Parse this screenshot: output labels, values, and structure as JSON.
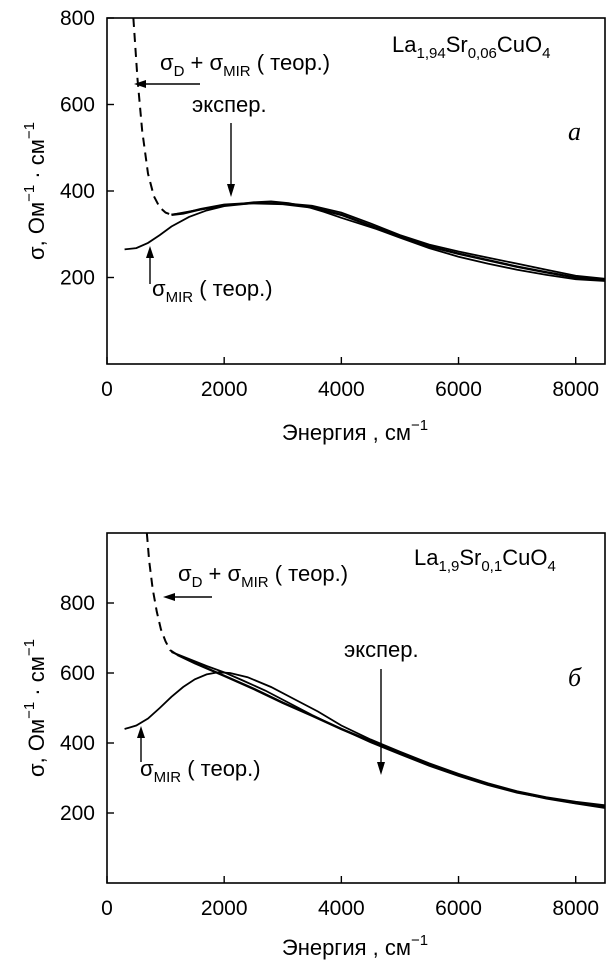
{
  "chart_data": [
    {
      "type": "line",
      "panel_letter": "a",
      "compound": {
        "main_1": "La",
        "sub_1": "1,94",
        "main_2": "Sr",
        "sub_2": "0,06",
        "main_3": "CuO",
        "sub_3": "4"
      },
      "xlim": [
        0,
        8500
      ],
      "ylim": [
        0,
        800
      ],
      "x_ticks": [
        0,
        2000,
        4000,
        6000,
        8000
      ],
      "y_ticks": [
        200,
        400,
        600,
        800
      ],
      "xlabel": {
        "text": "Энергия , см",
        "sup": "−1"
      },
      "ylabel": {
        "text_1": "σ, Ом",
        "sup_1": "−1",
        "text_2": " · см",
        "sup_2": "−1"
      },
      "annotations": {
        "total": {
          "sigma_1": "σ",
          "sub_1": "D",
          "plus": " + ",
          "sigma_2": "σ",
          "sub_2": "MIR",
          "tail": " ( теор.)"
        },
        "mir": {
          "sigma": "σ",
          "sub": "MIR",
          "tail": " ( теор.)"
        },
        "exp": "экспер."
      },
      "series": [
        {
          "style": "dashed-then-solid",
          "x": [
            450,
            520,
            600,
            700,
            800,
            900,
            1000,
            1100,
            1300,
            1600,
            2000,
            2500,
            3000,
            3500,
            4000,
            4500,
            5000,
            5500,
            6000,
            6500,
            7000,
            7500,
            8000,
            8500
          ],
          "y": [
            800,
            660,
            540,
            440,
            388,
            362,
            350,
            345,
            348,
            358,
            368,
            372,
            370,
            362,
            345,
            320,
            295,
            272,
            255,
            240,
            225,
            212,
            200,
            195
          ]
        },
        {
          "style": "solid",
          "x": [
            300,
            500,
            700,
            900,
            1100,
            1400,
            1700,
            2000,
            2500,
            3000,
            3500,
            4000,
            4500,
            5000,
            5500,
            6000,
            6500,
            7000,
            7500,
            8000,
            8500
          ],
          "y": [
            265,
            268,
            280,
            298,
            318,
            340,
            355,
            365,
            372,
            372,
            366,
            350,
            325,
            298,
            276,
            260,
            246,
            232,
            218,
            204,
            197
          ]
        },
        {
          "style": "solid",
          "x": [
            1100,
            1500,
            2000,
            2500,
            2800,
            3100,
            3400,
            3700,
            4000,
            4300,
            4600,
            5000,
            5500,
            6000,
            6500,
            7000,
            7500,
            8000,
            8500
          ],
          "y": [
            345,
            355,
            366,
            374,
            376,
            372,
            364,
            352,
            338,
            325,
            312,
            292,
            268,
            248,
            232,
            218,
            206,
            196,
            192
          ]
        }
      ]
    },
    {
      "type": "line",
      "panel_letter": "б",
      "compound": {
        "main_1": "La",
        "sub_1": "1,9",
        "main_2": "Sr",
        "sub_2": "0,1",
        "main_3": "CuO",
        "sub_3": "4"
      },
      "xlim": [
        0,
        8500
      ],
      "ylim": [
        0,
        1000
      ],
      "x_ticks": [
        0,
        2000,
        4000,
        6000,
        8000
      ],
      "y_ticks": [
        200,
        400,
        600,
        800
      ],
      "xlabel": {
        "text": "Энергия , см",
        "sup": "−1"
      },
      "ylabel": {
        "text_1": "σ, Ом",
        "sup_1": "−1",
        "text_2": " · см",
        "sup_2": "−1"
      },
      "annotations": {
        "total": {
          "sigma_1": "σ",
          "sub_1": "D",
          "plus": " + ",
          "sigma_2": "σ",
          "sub_2": "MIR",
          "tail": " ( теор.)"
        },
        "mir": {
          "sigma": "σ",
          "sub": "MIR",
          "tail": " ( теор.)"
        },
        "exp": "экспер."
      },
      "series": [
        {
          "style": "dashed-then-solid",
          "x": [
            680,
            720,
            780,
            850,
            920,
            1000,
            1080,
            1200,
            1500,
            2000,
            2500,
            3000,
            3500,
            4000,
            4500,
            5000,
            5500,
            6000,
            6500,
            7000,
            7500,
            8000,
            8500
          ],
          "y": [
            1000,
            920,
            840,
            775,
            725,
            690,
            665,
            652,
            628,
            592,
            555,
            515,
            478,
            440,
            405,
            370,
            338,
            308,
            282,
            260,
            242,
            228,
            215
          ]
        },
        {
          "style": "solid",
          "x": [
            300,
            500,
            700,
            900,
            1100,
            1300,
            1500,
            1700,
            1900,
            2100,
            2400,
            2800,
            3200,
            3600,
            4000,
            4500,
            5000,
            5500,
            6000,
            6500,
            7000,
            7500,
            8000,
            8500
          ],
          "y": [
            440,
            450,
            470,
            500,
            532,
            560,
            582,
            596,
            602,
            600,
            588,
            560,
            525,
            490,
            450,
            410,
            375,
            342,
            312,
            285,
            262,
            245,
            232,
            222
          ]
        },
        {
          "style": "solid",
          "x": [
            1100,
            1400,
            1700,
            2000,
            2300,
            2700,
            3100,
            3500,
            4000,
            4500,
            5000,
            5500,
            6000,
            6500,
            7000,
            7500,
            8000,
            8500
          ],
          "y": [
            660,
            640,
            620,
            602,
            580,
            550,
            515,
            480,
            440,
            402,
            368,
            335,
            306,
            280,
            258,
            242,
            228,
            218
          ]
        }
      ]
    }
  ]
}
